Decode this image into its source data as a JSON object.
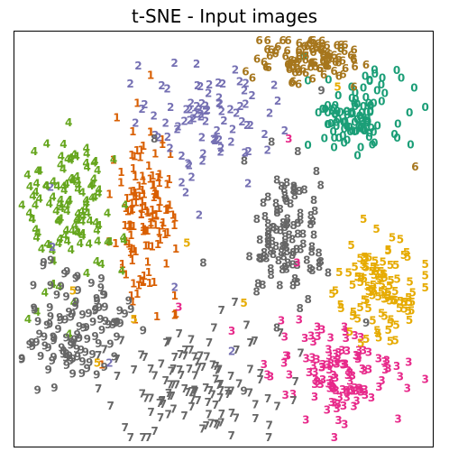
{
  "chart_data": {
    "type": "scatter",
    "title": "t-SNE - Input images",
    "xlabel": "",
    "ylabel": "",
    "xlim": [
      0,
      100
    ],
    "ylim": [
      0,
      100
    ],
    "axes_visible": false,
    "grid": false,
    "marker": "digit text label",
    "colors": {
      "0": "#1b9e77",
      "1": "#d95f02",
      "2": "#7570b3",
      "3": "#e7298a",
      "4": "#66a61e",
      "5": "#e6ab02",
      "6": "#a6761d",
      "7": "#666666",
      "8": "#666666",
      "9": "#666666"
    },
    "clusters": [
      {
        "label": "0",
        "center": [
          82,
          81
        ],
        "spread": [
          6,
          5
        ],
        "count": 110
      },
      {
        "label": "1",
        "center": [
          31,
          57
        ],
        "spread": [
          4,
          11
        ],
        "count": 130
      },
      {
        "label": "2",
        "center": [
          46,
          80
        ],
        "spread": [
          9,
          7
        ],
        "count": 85
      },
      {
        "label": "3",
        "center": [
          79,
          16
        ],
        "spread": [
          8,
          6
        ],
        "count": 120
      },
      {
        "label": "4",
        "center": [
          12,
          58
        ],
        "spread": [
          6,
          10
        ],
        "count": 120
      },
      {
        "label": "5",
        "center": [
          89,
          38
        ],
        "spread": [
          5,
          6
        ],
        "count": 105
      },
      {
        "label": "6",
        "center": [
          70,
          95
        ],
        "spread": [
          6,
          3
        ],
        "count": 100
      },
      {
        "label": "7",
        "center": [
          44,
          14
        ],
        "spread": [
          11,
          7
        ],
        "count": 120
      },
      {
        "label": "8",
        "center": [
          65,
          50
        ],
        "spread": [
          5,
          8
        ],
        "count": 110
      },
      {
        "label": "9",
        "center": [
          14,
          28
        ],
        "spread": [
          6,
          7
        ],
        "count": 115
      }
    ],
    "outliers": [
      {
        "label": "3",
        "x": 66,
        "y": 75
      },
      {
        "label": "3",
        "x": 39,
        "y": 33
      },
      {
        "label": "3",
        "x": 52,
        "y": 27
      },
      {
        "label": "3",
        "x": 68,
        "y": 44
      },
      {
        "label": "6",
        "x": 82,
        "y": 88
      },
      {
        "label": "6",
        "x": 97,
        "y": 68
      },
      {
        "label": "5",
        "x": 78,
        "y": 88
      },
      {
        "label": "5",
        "x": 55,
        "y": 34
      },
      {
        "label": "5",
        "x": 41,
        "y": 49
      },
      {
        "label": "5",
        "x": 13,
        "y": 37
      },
      {
        "label": "5",
        "x": 28,
        "y": 30
      },
      {
        "label": "5",
        "x": 19,
        "y": 19
      },
      {
        "label": "5",
        "x": 85,
        "y": 25
      },
      {
        "label": "2",
        "x": 65,
        "y": 77
      },
      {
        "label": "2",
        "x": 44,
        "y": 56
      },
      {
        "label": "2",
        "x": 38,
        "y": 38
      },
      {
        "label": "2",
        "x": 52,
        "y": 22
      },
      {
        "label": "2",
        "x": 22,
        "y": 19
      },
      {
        "label": "2",
        "x": 8,
        "y": 48
      },
      {
        "label": "8",
        "x": 45,
        "y": 44
      },
      {
        "label": "8",
        "x": 33,
        "y": 75
      },
      {
        "label": "9",
        "x": 74,
        "y": 87
      },
      {
        "label": "9",
        "x": 55,
        "y": 12
      },
      {
        "label": "9",
        "x": 85,
        "y": 29
      },
      {
        "label": "4",
        "x": 12,
        "y": 79
      },
      {
        "label": "4",
        "x": 2,
        "y": 30
      }
    ]
  }
}
